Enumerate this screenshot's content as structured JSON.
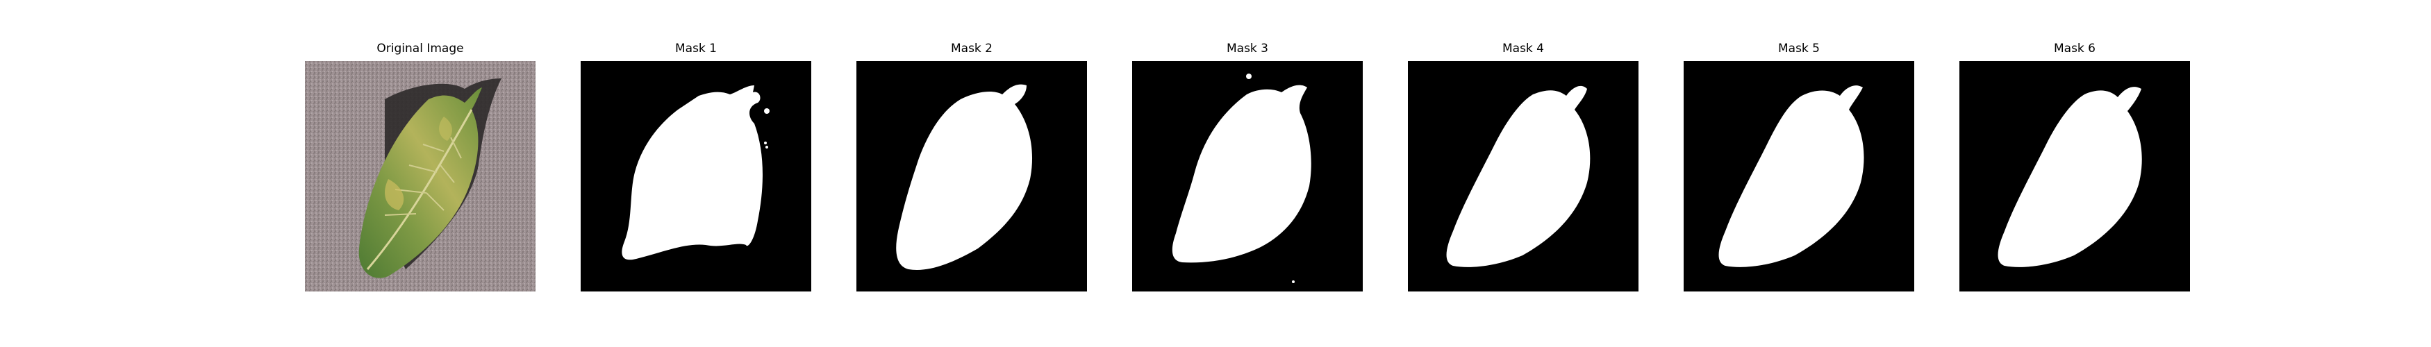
{
  "figure": {
    "titles": [
      "Original Image",
      "Mask 1",
      "Mask 2",
      "Mask 3",
      "Mask 4",
      "Mask 5",
      "Mask 6"
    ],
    "colors": {
      "background": "#ffffff",
      "mask_background": "#000000",
      "mask_foreground": "#ffffff",
      "ground_gray": "#9c8f91",
      "leaf_green": "#5f8a3a",
      "leaf_yellow": "#b6b75a"
    }
  }
}
